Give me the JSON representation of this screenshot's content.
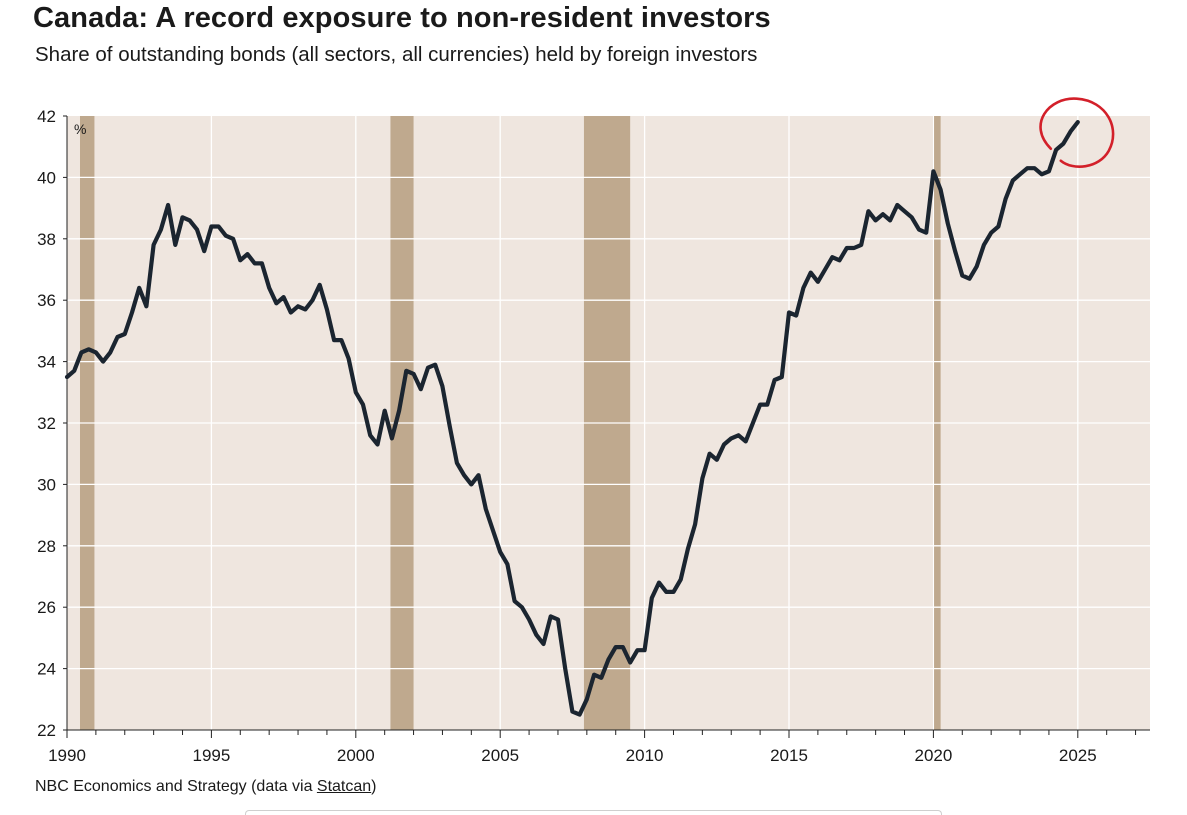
{
  "title": "Canada: A record exposure to non-resident investors",
  "subtitle": "Share of outstanding bonds (all sectors, all currencies) held by foreign investors",
  "source": {
    "prefix": "NBC Economics and Strategy (data via ",
    "link": "Statcan",
    "suffix": ")"
  },
  "colors": {
    "plot_background": "#efe6df",
    "recession_band": "#bfa98e",
    "line": "#1b2530",
    "grid": "#ffffff",
    "highlight_circle": "#d3202a"
  },
  "chart_data": {
    "type": "line",
    "unit_label": "%",
    "xlim": [
      1990,
      2027.5
    ],
    "ylim": [
      22,
      42
    ],
    "x_ticks": [
      1990,
      1995,
      2000,
      2005,
      2010,
      2015,
      2020,
      2025
    ],
    "x_tick_labels": [
      "1990",
      "1995",
      "2000",
      "2005",
      "2010",
      "2015",
      "2020",
      "2025"
    ],
    "y_ticks": [
      22,
      24,
      26,
      28,
      30,
      32,
      34,
      36,
      38,
      40,
      42
    ],
    "y_tick_labels": [
      "22",
      "24",
      "26",
      "28",
      "30",
      "32",
      "34",
      "36",
      "38",
      "40",
      "42"
    ],
    "grid": true,
    "recessions": [
      [
        1990.45,
        1990.95
      ],
      [
        2001.2,
        2002.0
      ],
      [
        2007.9,
        2009.5
      ],
      [
        2019.98,
        2020.25
      ]
    ],
    "highlight": "circle around latest values (2024-2025)",
    "series": [
      {
        "x": [
          1990.0,
          1990.25,
          1990.5,
          1990.75,
          1991.0,
          1991.25,
          1991.5,
          1991.75,
          1992.0,
          1992.25,
          1992.5,
          1992.75,
          1993.0,
          1993.25,
          1993.5,
          1993.75,
          1994.0,
          1994.25,
          1994.5,
          1994.75,
          1995.0,
          1995.25,
          1995.5,
          1995.75,
          1996.0,
          1996.25,
          1996.5,
          1996.75,
          1997.0,
          1997.25,
          1997.5,
          1997.75,
          1998.0,
          1998.25,
          1998.5,
          1998.75,
          1999.0,
          1999.25,
          1999.5,
          1999.75,
          2000.0,
          2000.25,
          2000.5,
          2000.75,
          2001.0,
          2001.25,
          2001.5,
          2001.75,
          2002.0,
          2002.25,
          2002.5,
          2002.75,
          2003.0,
          2003.25,
          2003.5,
          2003.75,
          2004.0,
          2004.25,
          2004.5,
          2004.75,
          2005.0,
          2005.25,
          2005.5,
          2005.75,
          2006.0,
          2006.25,
          2006.5,
          2006.75,
          2007.0,
          2007.25,
          2007.5,
          2007.75,
          2008.0,
          2008.25,
          2008.5,
          2008.75,
          2009.0,
          2009.25,
          2009.5,
          2009.75,
          2010.0,
          2010.25,
          2010.5,
          2010.75,
          2011.0,
          2011.25,
          2011.5,
          2011.75,
          2012.0,
          2012.25,
          2012.5,
          2012.75,
          2013.0,
          2013.25,
          2013.5,
          2013.75,
          2014.0,
          2014.25,
          2014.5,
          2014.75,
          2015.0,
          2015.25,
          2015.5,
          2015.75,
          2016.0,
          2016.25,
          2016.5,
          2016.75,
          2017.0,
          2017.25,
          2017.5,
          2017.75,
          2018.0,
          2018.25,
          2018.5,
          2018.75,
          2019.0,
          2019.25,
          2019.5,
          2019.75,
          2020.0,
          2020.25,
          2020.5,
          2020.75,
          2021.0,
          2021.25,
          2021.5,
          2021.75,
          2022.0,
          2022.25,
          2022.5,
          2022.75,
          2023.0,
          2023.25,
          2023.5,
          2023.75,
          2024.0,
          2024.25,
          2024.5,
          2024.75,
          2025.0
        ],
        "values": [
          33.5,
          33.7,
          34.3,
          34.4,
          34.3,
          34.0,
          34.3,
          34.8,
          34.9,
          35.6,
          36.4,
          35.8,
          37.8,
          38.3,
          39.1,
          37.8,
          38.7,
          38.6,
          38.3,
          37.6,
          38.4,
          38.4,
          38.1,
          38.0,
          37.3,
          37.5,
          37.2,
          37.2,
          36.4,
          35.9,
          36.1,
          35.6,
          35.8,
          35.7,
          36.0,
          36.5,
          35.7,
          34.7,
          34.7,
          34.1,
          33.0,
          32.6,
          31.6,
          31.3,
          32.4,
          31.5,
          32.4,
          33.7,
          33.6,
          33.1,
          33.8,
          33.9,
          33.2,
          31.9,
          30.7,
          30.3,
          30.0,
          30.3,
          29.2,
          28.5,
          27.8,
          27.4,
          26.2,
          26.0,
          25.6,
          25.1,
          24.8,
          25.7,
          25.6,
          24.0,
          22.6,
          22.5,
          23.0,
          23.8,
          23.7,
          24.3,
          24.7,
          24.7,
          24.2,
          24.6,
          24.6,
          26.3,
          26.8,
          26.5,
          26.5,
          26.9,
          27.9,
          28.7,
          30.2,
          31.0,
          30.8,
          31.3,
          31.5,
          31.6,
          31.4,
          32.0,
          32.6,
          32.6,
          33.4,
          33.5,
          35.6,
          35.5,
          36.4,
          36.9,
          36.6,
          37.0,
          37.4,
          37.3,
          37.7,
          37.7,
          37.8,
          38.9,
          38.6,
          38.8,
          38.6,
          39.1,
          38.9,
          38.7,
          38.3,
          38.2,
          40.2,
          39.6,
          38.5,
          37.6,
          36.8,
          36.7,
          37.1,
          37.8,
          38.2,
          38.4,
          39.3,
          39.9,
          40.1,
          40.3,
          40.3,
          40.1,
          40.2,
          40.9,
          41.1,
          41.5,
          41.8
        ]
      }
    ]
  }
}
